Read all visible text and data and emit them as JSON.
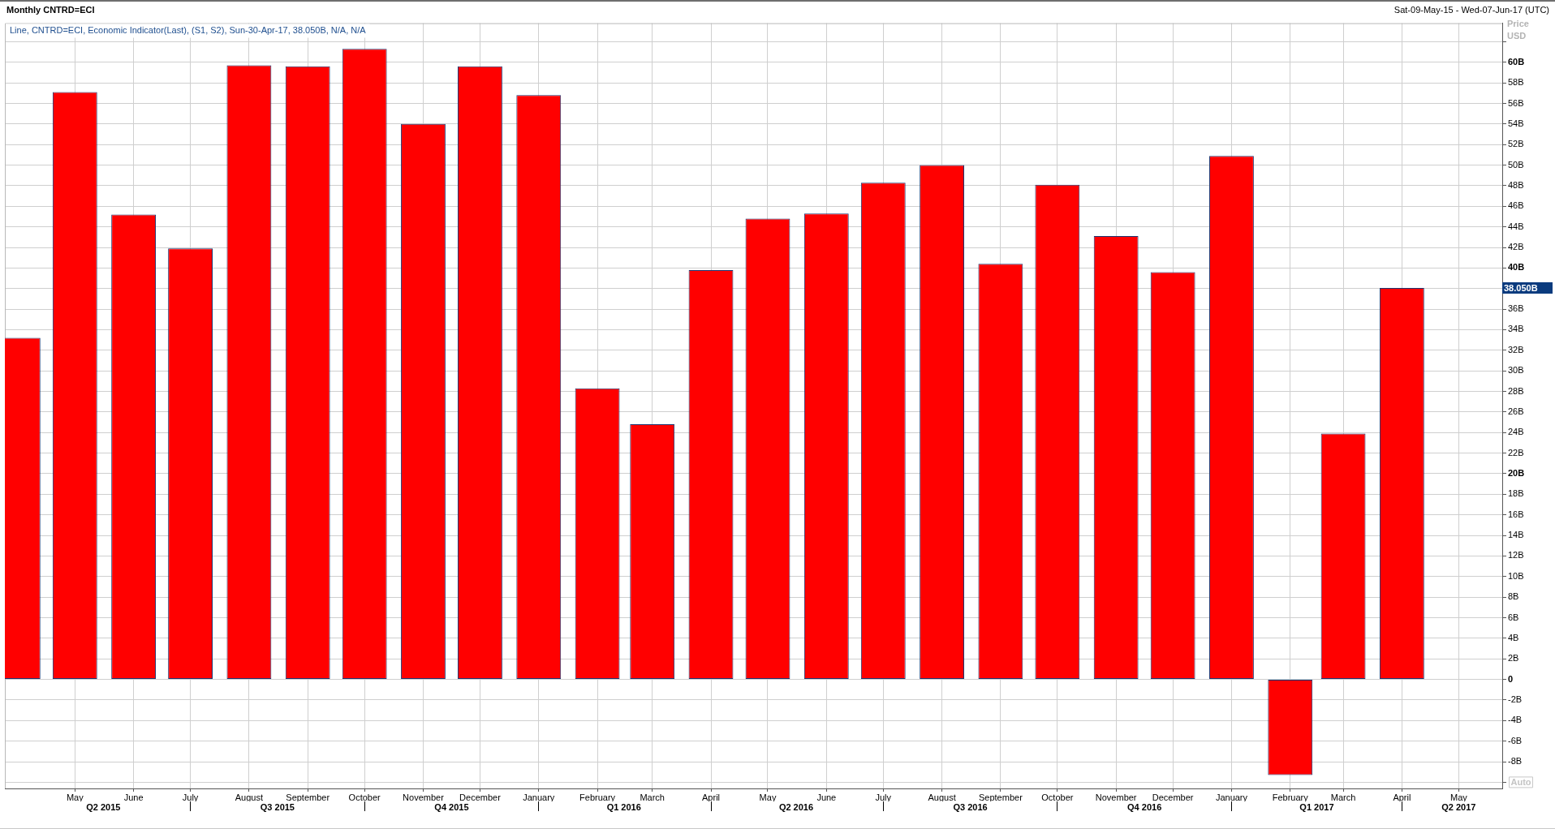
{
  "chart_data": {
    "type": "bar",
    "title": "Monthly CNTRD=ECI",
    "subtitle": "Sat-09-May-15 - Wed-07-Jun-17 (UTC)",
    "ylabel": "Price USD",
    "annotations": [
      "Line, CNTRD=ECI, Economic Indicator(Last), (S1, S2), Sun-30-Apr-17, 38.050B, N/A, N/A",
      "Auto",
      "38.050B"
    ],
    "x": [
      "2015-04",
      "2015-05",
      "2015-06",
      "2015-07",
      "2015-08",
      "2015-09",
      "2015-10",
      "2015-11",
      "2015-12",
      "2016-01",
      "2016-02",
      "2016-03",
      "2016-04",
      "2016-05",
      "2016-06",
      "2016-07",
      "2016-08",
      "2016-09",
      "2016-10",
      "2016-11",
      "2016-12",
      "2017-01",
      "2017-02",
      "2017-03",
      "2017-04"
    ],
    "values": [
      33.2,
      57.1,
      45.2,
      41.9,
      59.7,
      59.6,
      61.3,
      54.0,
      59.6,
      56.8,
      28.3,
      24.8,
      39.8,
      44.8,
      45.3,
      48.3,
      50.0,
      40.4,
      48.1,
      43.1,
      39.6,
      50.9,
      -9.3,
      23.9,
      38.05
    ],
    "color": "#ff0000",
    "xlim": [
      "2015-03-25",
      "2017-05-24"
    ],
    "xticks": [
      {
        "value": "2015-05",
        "label": "May"
      },
      {
        "value": "2015-06",
        "label": "June"
      },
      {
        "value": "2015-07",
        "label": "July"
      },
      {
        "value": "2015-08",
        "label": "August"
      },
      {
        "value": "2015-09",
        "label": "September"
      },
      {
        "value": "2015-10",
        "label": "October"
      },
      {
        "value": "2015-11",
        "label": "November"
      },
      {
        "value": "2015-12",
        "label": "December"
      },
      {
        "value": "2016-01",
        "label": "January"
      },
      {
        "value": "2016-02",
        "label": "February"
      },
      {
        "value": "2016-03",
        "label": "March"
      },
      {
        "value": "2016-04",
        "label": "April"
      },
      {
        "value": "2016-05",
        "label": "May"
      },
      {
        "value": "2016-06",
        "label": "June"
      },
      {
        "value": "2016-07",
        "label": "July"
      },
      {
        "value": "2016-08",
        "label": "August"
      },
      {
        "value": "2016-09",
        "label": "September"
      },
      {
        "value": "2016-10",
        "label": "October"
      },
      {
        "value": "2016-11",
        "label": "November"
      },
      {
        "value": "2016-12",
        "label": "December"
      },
      {
        "value": "2017-01",
        "label": "January"
      },
      {
        "value": "2017-02",
        "label": "February"
      },
      {
        "value": "2017-03",
        "label": "March"
      },
      {
        "value": "2017-04",
        "label": "April"
      },
      {
        "value": "2017-05",
        "label": "May"
      }
    ],
    "x2lim": [
      "2015-03-25",
      "2017-05-24"
    ],
    "x2ticks": [
      {
        "value": "2015-05-16",
        "label": "Q2 2015"
      },
      {
        "value": "2015-07",
        "label": null
      },
      {
        "value": "2015-08-16",
        "label": "Q3 2015"
      },
      {
        "value": "2015-10",
        "label": null
      },
      {
        "value": "2015-11-16",
        "label": "Q4 2015"
      },
      {
        "value": "2016-01",
        "label": null
      },
      {
        "value": "2016-02-15",
        "label": "Q1 2016"
      },
      {
        "value": "2016-04",
        "label": null
      },
      {
        "value": "2016-05-16",
        "label": "Q2 2016"
      },
      {
        "value": "2016-07",
        "label": null
      },
      {
        "value": "2016-08-16",
        "label": "Q3 2016"
      },
      {
        "value": "2016-10",
        "label": null
      },
      {
        "value": "2016-11-16",
        "label": "Q4 2016"
      },
      {
        "value": "2017-01",
        "label": null
      },
      {
        "value": "2017-02-15",
        "label": "Q1 2017"
      },
      {
        "value": "2017-04",
        "label": null
      },
      {
        "value": "2017-05",
        "label": "Q2 2017"
      }
    ],
    "ylim": [
      -10.6,
      63.8
    ],
    "yticks": [
      {
        "value": -10,
        "label": null
      },
      {
        "value": -8,
        "label": "-8B"
      },
      {
        "value": -6,
        "label": "-6B"
      },
      {
        "value": -4,
        "label": "-4B"
      },
      {
        "value": -2,
        "label": "-2B"
      },
      0,
      {
        "value": 2,
        "label": "2B"
      },
      {
        "value": 4,
        "label": "4B"
      },
      {
        "value": 6,
        "label": "6B"
      },
      {
        "value": 8,
        "label": "8B"
      },
      {
        "value": 10,
        "label": "10B"
      },
      {
        "value": 12,
        "label": "12B"
      },
      {
        "value": 14,
        "label": "14B"
      },
      {
        "value": 16,
        "label": "16B"
      },
      {
        "value": 18,
        "label": "18B"
      },
      {
        "value": 20,
        "label": "20B"
      },
      {
        "value": 22,
        "label": "22B"
      },
      {
        "value": 24,
        "label": "24B"
      },
      {
        "value": 26,
        "label": "26B"
      },
      {
        "value": 28,
        "label": "28B"
      },
      {
        "value": 30,
        "label": "30B"
      },
      {
        "value": 32,
        "label": "32B"
      },
      {
        "value": 34,
        "label": "34B"
      },
      {
        "value": 36,
        "label": "36B"
      },
      {
        "value": 38,
        "label": null
      },
      {
        "value": 40,
        "label": "40B"
      },
      {
        "value": 42,
        "label": "42B"
      },
      {
        "value": 44,
        "label": "44B"
      },
      {
        "value": 46,
        "label": "46B"
      },
      {
        "value": 48,
        "label": "48B"
      },
      {
        "value": 50,
        "label": "50B"
      },
      {
        "value": 52,
        "label": "52B"
      },
      {
        "value": 54,
        "label": "54B"
      },
      {
        "value": 56,
        "label": "56B"
      },
      {
        "value": 58,
        "label": "58B"
      },
      {
        "value": 60,
        "label": "60B"
      },
      {
        "value": 62,
        "label": null
      }
    ],
    "grid": true
  }
}
